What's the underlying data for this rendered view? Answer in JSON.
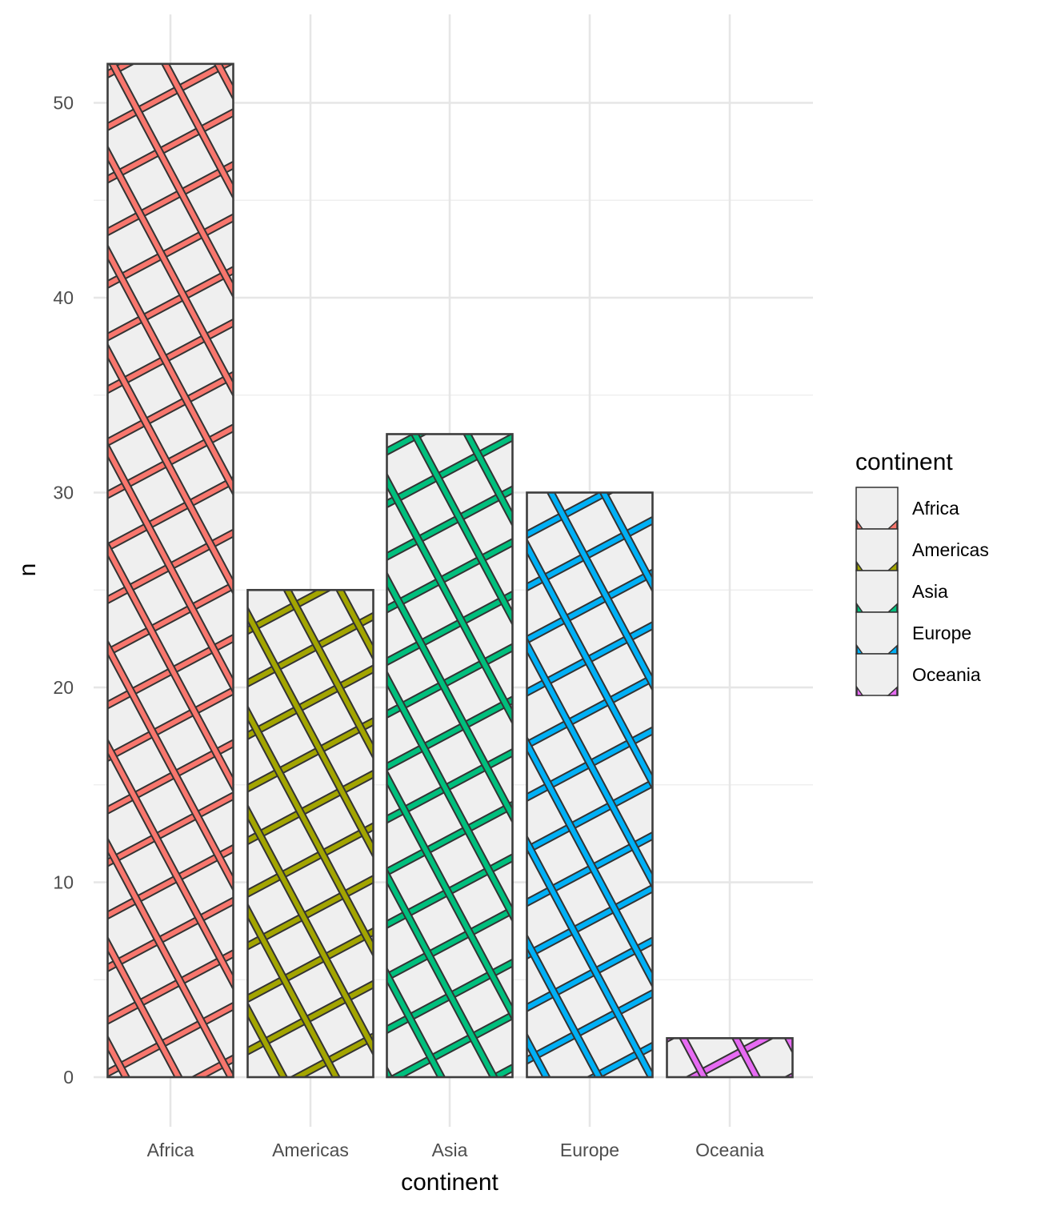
{
  "chart_data": {
    "type": "bar",
    "pattern": "crosshatch",
    "categories": [
      "Africa",
      "Americas",
      "Asia",
      "Europe",
      "Oceania"
    ],
    "values": [
      52,
      25,
      33,
      30,
      2
    ],
    "colors": [
      "#F8766D",
      "#A3A500",
      "#00BF7D",
      "#00B0F6",
      "#E76BF3"
    ],
    "bar_fill": "#EFEFEF",
    "bar_outline": "#3d3d3d",
    "xlabel": "continent",
    "ylabel": "n",
    "ylim": [
      -2.6,
      54.6
    ],
    "yticks": [
      0,
      10,
      20,
      30,
      40,
      50
    ],
    "grid": true,
    "legend": {
      "title": "continent",
      "position": "right",
      "entries": [
        "Africa",
        "Americas",
        "Asia",
        "Europe",
        "Oceania"
      ]
    }
  }
}
